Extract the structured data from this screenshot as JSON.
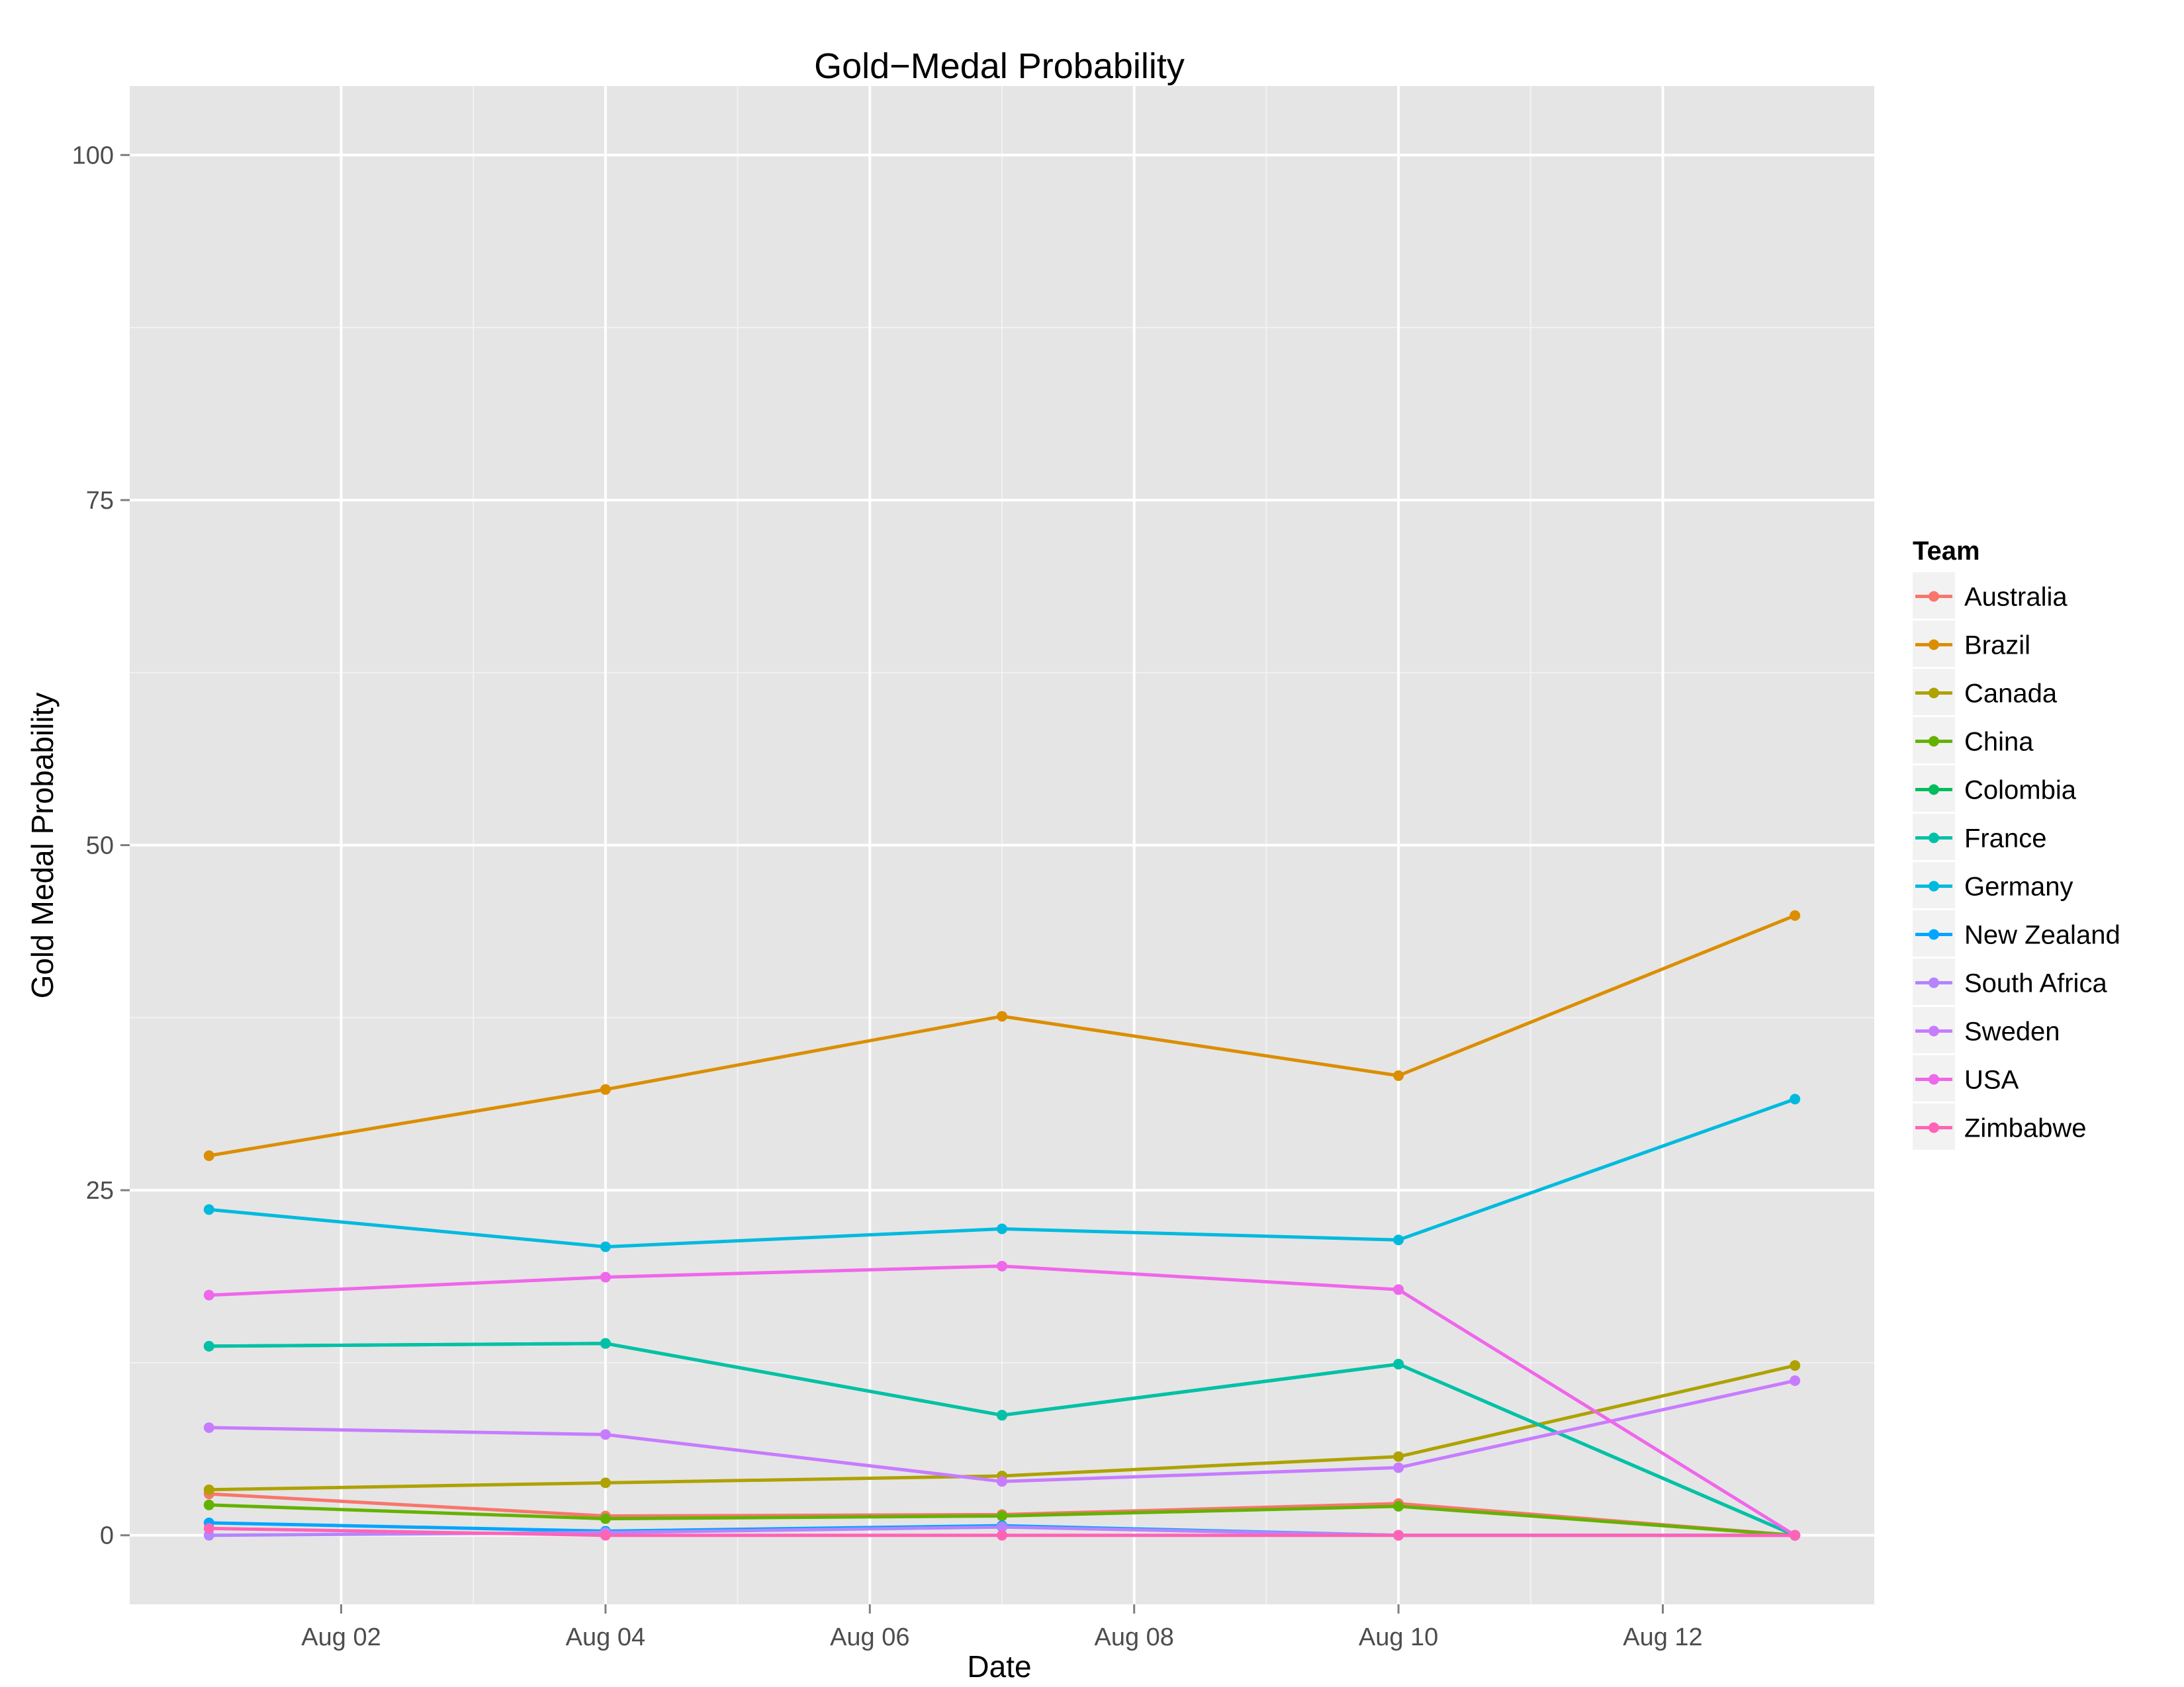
{
  "chart_data": {
    "type": "line",
    "title": "Gold−Medal Probability",
    "xlabel": "Date",
    "ylabel": "Gold Medal Probability",
    "x_dates": [
      "Aug 01",
      "Aug 04",
      "Aug 07",
      "Aug 10",
      "Aug 13"
    ],
    "x_day": [
      1,
      4,
      7,
      10,
      13
    ],
    "xlim": [
      0.4,
      13.6
    ],
    "x_ticks": [
      {
        "day": 2,
        "label": "Aug 02"
      },
      {
        "day": 4,
        "label": "Aug 04"
      },
      {
        "day": 6,
        "label": "Aug 06"
      },
      {
        "day": 8,
        "label": "Aug 08"
      },
      {
        "day": 10,
        "label": "Aug 10"
      },
      {
        "day": 12,
        "label": "Aug 12"
      }
    ],
    "ylim": [
      -5,
      105
    ],
    "y_ticks": [
      0,
      25,
      50,
      75,
      100
    ],
    "grid": true,
    "legend_title": "Team",
    "legend_position": "right",
    "series": [
      {
        "name": "Australia",
        "color": "#F8766D",
        "values": [
          3.0,
          1.4,
          1.5,
          2.3,
          0
        ]
      },
      {
        "name": "Brazil",
        "color": "#DB8E00",
        "values": [
          27.5,
          32.3,
          37.6,
          33.3,
          44.9
        ]
      },
      {
        "name": "Canada",
        "color": "#AEA200",
        "values": [
          3.3,
          3.8,
          4.3,
          5.7,
          12.3
        ]
      },
      {
        "name": "China",
        "color": "#64B200",
        "values": [
          2.2,
          1.2,
          1.4,
          2.1,
          0
        ]
      },
      {
        "name": "Colombia",
        "color": "#00BD5C",
        "values": [
          13.7,
          13.9,
          8.7,
          12.4,
          0
        ]
      },
      {
        "name": "France",
        "color": "#00C1A7",
        "values": [
          13.7,
          13.9,
          8.7,
          12.4,
          0
        ]
      },
      {
        "name": "Germany",
        "color": "#00BADE",
        "values": [
          23.6,
          20.9,
          22.2,
          21.4,
          31.6
        ]
      },
      {
        "name": "New Zealand",
        "color": "#00A6FF",
        "values": [
          0.9,
          0.3,
          0.7,
          0.0,
          0
        ]
      },
      {
        "name": "South Africa",
        "color": "#B385FF",
        "values": [
          0.0,
          0.2,
          0.6,
          0.0,
          0
        ]
      },
      {
        "name": "Sweden",
        "color": "#C77CFF",
        "values": [
          7.8,
          7.3,
          3.9,
          4.9,
          11.2
        ]
      },
      {
        "name": "USA",
        "color": "#EF67EB",
        "values": [
          17.4,
          18.7,
          19.5,
          17.8,
          0
        ]
      },
      {
        "name": "Zimbabwe",
        "color": "#FF63B6",
        "values": [
          0.5,
          0.0,
          0.0,
          0.0,
          0
        ]
      }
    ]
  }
}
